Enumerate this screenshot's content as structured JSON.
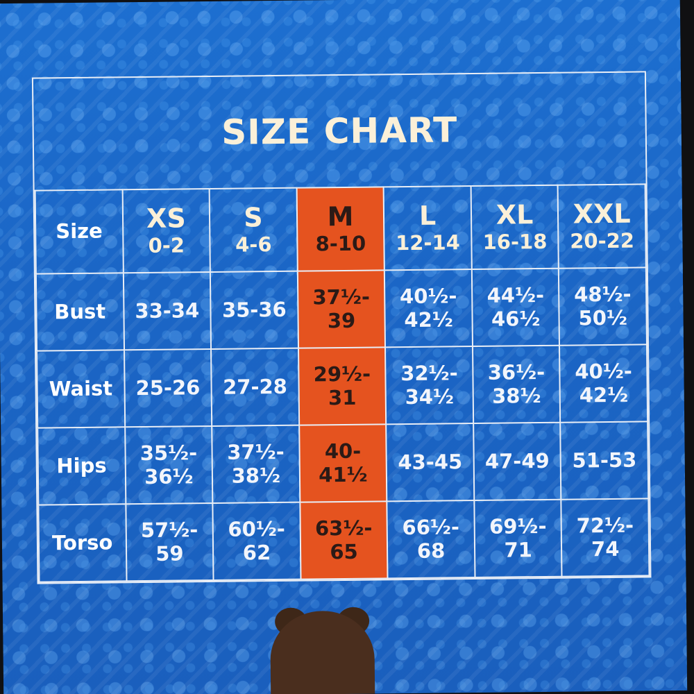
{
  "colors": {
    "card_blue": "#1b66c6",
    "highlight_orange": "#e5531f",
    "text_cream": "#fbf0d8",
    "grid_line": "#e9eef6"
  },
  "chart": {
    "title": "SIZE CHART",
    "row_header_label": "Size",
    "sizes": [
      {
        "letter": "XS",
        "range": "0-2"
      },
      {
        "letter": "S",
        "range": "4-6"
      },
      {
        "letter": "M",
        "range": "8-10"
      },
      {
        "letter": "L",
        "range": "12-14"
      },
      {
        "letter": "XL",
        "range": "16-18"
      },
      {
        "letter": "XXL",
        "range": "20-22"
      }
    ],
    "highlighted_size": "M",
    "rows": [
      {
        "label": "Bust",
        "values": [
          "33-34",
          "35-36",
          "37½-39",
          "40½-42½",
          "44½-46½",
          "48½-50½"
        ]
      },
      {
        "label": "Waist",
        "values": [
          "25-26",
          "27-28",
          "29½-31",
          "32½-34½",
          "36½-38½",
          "40½-42½"
        ]
      },
      {
        "label": "Hips",
        "values": [
          "35½-36½",
          "37½-38½",
          "40-41½",
          "43-45",
          "47-49",
          "51-53"
        ]
      },
      {
        "label": "Torso",
        "values": [
          "57½-59",
          "60½-62",
          "63½-65",
          "66½-68",
          "69½-71",
          "72½-74"
        ]
      }
    ]
  }
}
